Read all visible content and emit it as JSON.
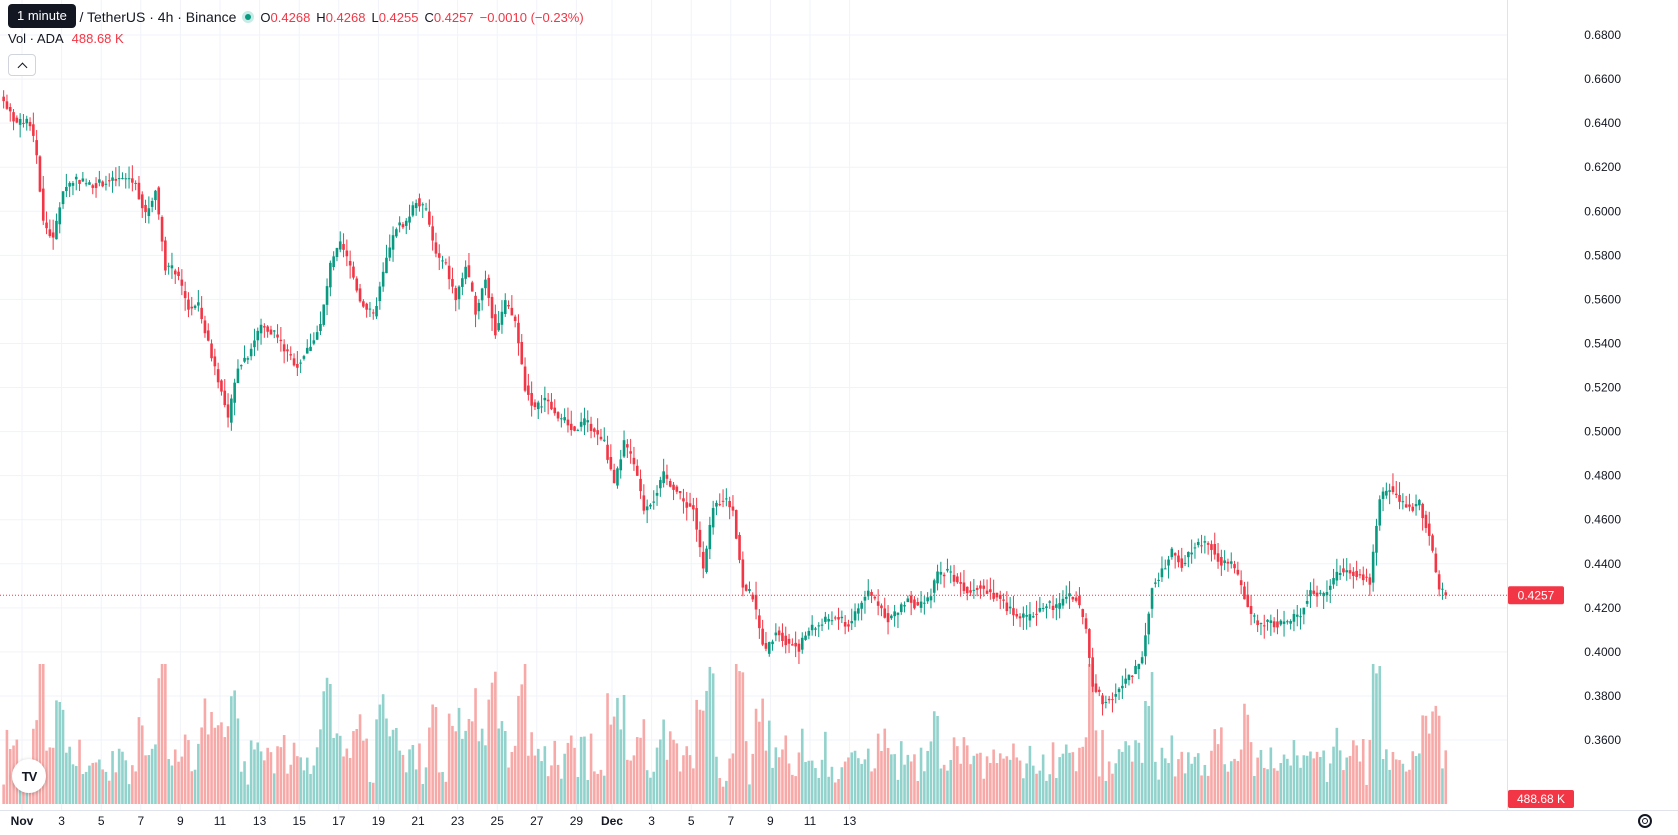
{
  "legend": {
    "symbol": "no / TetherUS · 4h · Binance",
    "open_label": "O",
    "open": "0.4268",
    "high_label": "H",
    "high": "0.4268",
    "low_label": "L",
    "low": "0.4255",
    "close_label": "C",
    "close": "0.4257",
    "change": "−0.0010 (−0.23%)"
  },
  "tooltip": "1 minute",
  "volume_legend": {
    "label": "Vol · ADA",
    "value": "488.68 K"
  },
  "last_price_label": "0.4257",
  "last_volume_label": "488.68 K",
  "logo_text": "TV",
  "colors": {
    "up": "#089981",
    "down": "#f23645",
    "up_vol": "#92d2cc",
    "down_vol": "#f7a9a7"
  },
  "chart_data": {
    "type": "candlestick",
    "y_ticks": [
      "0.3600",
      "0.3800",
      "0.4000",
      "0.4200",
      "0.4400",
      "0.4600",
      "0.4800",
      "0.5000",
      "0.5200",
      "0.5400",
      "0.5600",
      "0.5800",
      "0.6000",
      "0.6200",
      "0.6400",
      "0.6600",
      "0.6800"
    ],
    "x_ticks": [
      "Nov",
      "3",
      "5",
      "7",
      "9",
      "11",
      "13",
      "15",
      "17",
      "19",
      "21",
      "23",
      "25",
      "27",
      "29",
      "Dec",
      "3",
      "5",
      "7",
      "9",
      "11",
      "13"
    ],
    "ylim": [
      0.35,
      0.685
    ],
    "last_price": 0.4257,
    "anchors": [
      [
        0,
        0.65
      ],
      [
        4,
        0.64
      ],
      [
        8,
        0.64
      ],
      [
        10,
        0.625
      ],
      [
        12,
        0.595
      ],
      [
        15,
        0.587
      ],
      [
        18,
        0.61
      ],
      [
        22,
        0.615
      ],
      [
        26,
        0.612
      ],
      [
        30,
        0.613
      ],
      [
        34,
        0.614
      ],
      [
        38,
        0.615
      ],
      [
        40,
        0.612
      ],
      [
        43,
        0.598
      ],
      [
        46,
        0.61
      ],
      [
        49,
        0.575
      ],
      [
        52,
        0.573
      ],
      [
        56,
        0.556
      ],
      [
        59,
        0.557
      ],
      [
        62,
        0.54
      ],
      [
        65,
        0.524
      ],
      [
        68,
        0.505
      ],
      [
        71,
        0.53
      ],
      [
        74,
        0.535
      ],
      [
        78,
        0.548
      ],
      [
        82,
        0.545
      ],
      [
        86,
        0.535
      ],
      [
        89,
        0.53
      ],
      [
        92,
        0.537
      ],
      [
        96,
        0.548
      ],
      [
        99,
        0.575
      ],
      [
        102,
        0.585
      ],
      [
        105,
        0.575
      ],
      [
        108,
        0.56
      ],
      [
        112,
        0.552
      ],
      [
        116,
        0.578
      ],
      [
        119,
        0.593
      ],
      [
        122,
        0.595
      ],
      [
        125,
        0.605
      ],
      [
        128,
        0.6
      ],
      [
        131,
        0.58
      ],
      [
        134,
        0.575
      ],
      [
        137,
        0.56
      ],
      [
        140,
        0.575
      ],
      [
        143,
        0.555
      ],
      [
        146,
        0.57
      ],
      [
        149,
        0.545
      ],
      [
        152,
        0.558
      ],
      [
        155,
        0.55
      ],
      [
        158,
        0.52
      ],
      [
        161,
        0.51
      ],
      [
        164,
        0.515
      ],
      [
        167,
        0.508
      ],
      [
        170,
        0.505
      ],
      [
        173,
        0.5
      ],
      [
        176,
        0.505
      ],
      [
        179,
        0.5
      ],
      [
        182,
        0.495
      ],
      [
        185,
        0.475
      ],
      [
        188,
        0.495
      ],
      [
        191,
        0.485
      ],
      [
        194,
        0.465
      ],
      [
        197,
        0.47
      ],
      [
        200,
        0.48
      ],
      [
        203,
        0.475
      ],
      [
        206,
        0.468
      ],
      [
        209,
        0.465
      ],
      [
        212,
        0.437
      ],
      [
        215,
        0.465
      ],
      [
        218,
        0.47
      ],
      [
        221,
        0.465
      ],
      [
        224,
        0.43
      ],
      [
        227,
        0.425
      ],
      [
        229,
        0.41
      ],
      [
        231,
        0.4
      ],
      [
        234,
        0.41
      ],
      [
        237,
        0.405
      ],
      [
        241,
        0.402
      ],
      [
        244,
        0.41
      ],
      [
        247,
        0.412
      ],
      [
        250,
        0.415
      ],
      [
        253,
        0.415
      ],
      [
        256,
        0.412
      ],
      [
        259,
        0.42
      ],
      [
        262,
        0.427
      ],
      [
        265,
        0.422
      ],
      [
        268,
        0.415
      ],
      [
        271,
        0.418
      ],
      [
        274,
        0.425
      ],
      [
        277,
        0.42
      ],
      [
        280,
        0.423
      ],
      [
        283,
        0.435
      ],
      [
        286,
        0.437
      ],
      [
        289,
        0.432
      ],
      [
        292,
        0.428
      ],
      [
        295,
        0.43
      ],
      [
        298,
        0.428
      ],
      [
        301,
        0.425
      ],
      [
        304,
        0.42
      ],
      [
        307,
        0.417
      ],
      [
        310,
        0.415
      ],
      [
        313,
        0.418
      ],
      [
        316,
        0.422
      ],
      [
        319,
        0.42
      ],
      [
        322,
        0.425
      ],
      [
        325,
        0.425
      ],
      [
        328,
        0.41
      ],
      [
        330,
        0.385
      ],
      [
        333,
        0.378
      ],
      [
        336,
        0.38
      ],
      [
        339,
        0.385
      ],
      [
        342,
        0.39
      ],
      [
        345,
        0.398
      ],
      [
        348,
        0.43
      ],
      [
        351,
        0.437
      ],
      [
        354,
        0.445
      ],
      [
        357,
        0.44
      ],
      [
        360,
        0.447
      ],
      [
        363,
        0.45
      ],
      [
        366,
        0.448
      ],
      [
        369,
        0.44
      ],
      [
        372,
        0.44
      ],
      [
        375,
        0.43
      ],
      [
        378,
        0.416
      ],
      [
        381,
        0.413
      ],
      [
        384,
        0.413
      ],
      [
        387,
        0.413
      ],
      [
        390,
        0.414
      ],
      [
        393,
        0.418
      ],
      [
        396,
        0.428
      ],
      [
        399,
        0.425
      ],
      [
        402,
        0.43
      ],
      [
        405,
        0.437
      ],
      [
        408,
        0.437
      ],
      [
        411,
        0.435
      ],
      [
        414,
        0.432
      ],
      [
        417,
        0.47
      ],
      [
        420,
        0.475
      ],
      [
        423,
        0.468
      ],
      [
        426,
        0.465
      ],
      [
        429,
        0.468
      ],
      [
        432,
        0.452
      ],
      [
        435,
        0.428
      ],
      [
        437,
        0.4257
      ]
    ],
    "volume": {
      "label": "Vol · ADA",
      "last": 488.68,
      "unit": "K"
    }
  }
}
